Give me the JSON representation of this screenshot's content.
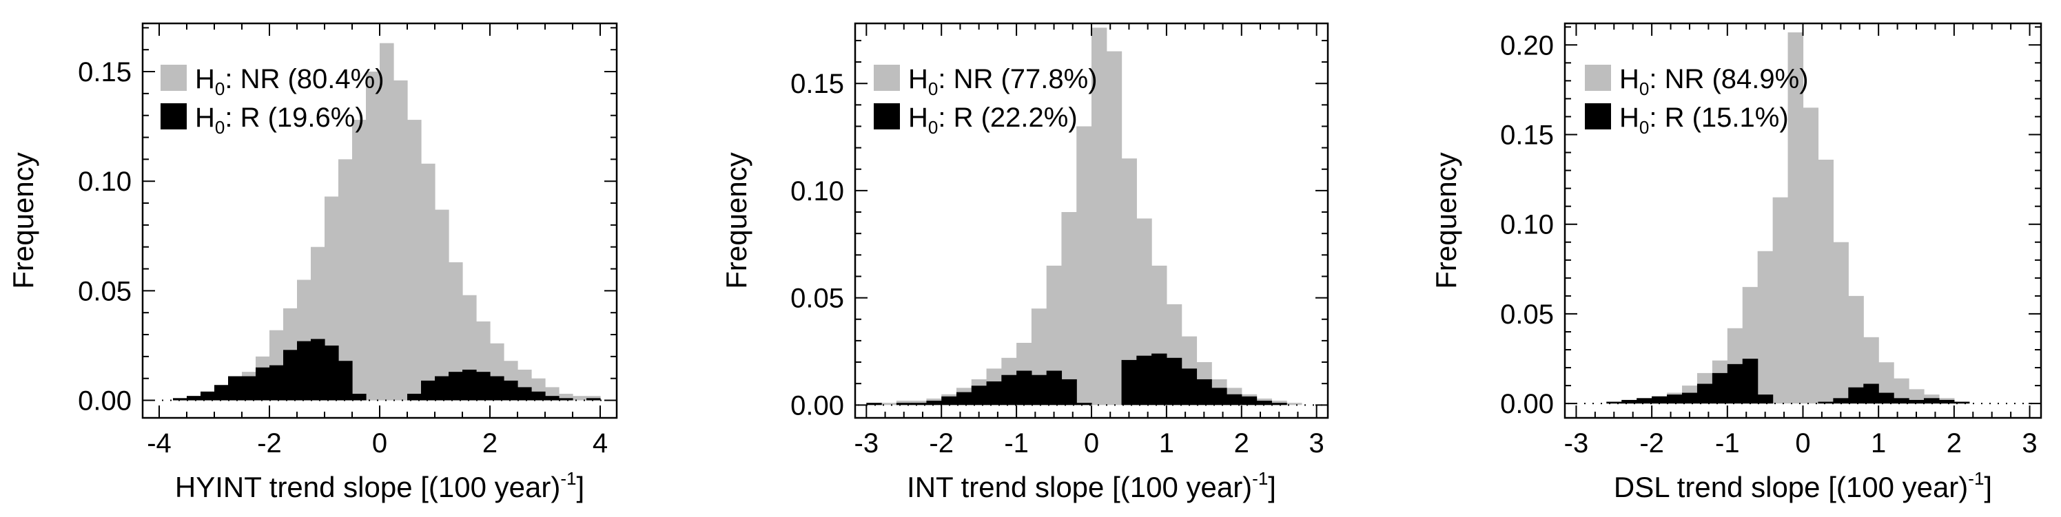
{
  "chart_data": [
    {
      "type": "bar",
      "xlabel": "HYINT trend slope [(100 year)",
      "xlabel_sup": "-1",
      "xlabel_tail": "]",
      "ylabel": "Frequency",
      "xlim": [
        -4.3,
        4.3
      ],
      "ylim": [
        -0.008,
        0.172
      ],
      "xticks": [
        -4,
        -2,
        0,
        2,
        4
      ],
      "xtick_labels": [
        "-4",
        "-2",
        "0",
        "2",
        "4"
      ],
      "yticks": [
        0,
        0.05,
        0.1,
        0.15
      ],
      "ytick_labels": [
        "0.00",
        "0.05",
        "0.10",
        "0.15"
      ],
      "bin_width": 0.25,
      "x": [
        -3.75,
        -3.5,
        -3.25,
        -3.0,
        -2.75,
        -2.5,
        -2.25,
        -2.0,
        -1.75,
        -1.5,
        -1.25,
        -1.0,
        -0.75,
        -0.5,
        -0.25,
        0.0,
        0.25,
        0.5,
        0.75,
        1.0,
        1.25,
        1.5,
        1.75,
        2.0,
        2.25,
        2.5,
        2.75,
        3.0,
        3.25,
        3.5,
        3.75
      ],
      "series": [
        {
          "name": "NR",
          "color": "#bebebe",
          "values": [
            0.001,
            0.002,
            0.003,
            0.005,
            0.008,
            0.013,
            0.02,
            0.032,
            0.042,
            0.055,
            0.07,
            0.093,
            0.11,
            0.128,
            0.15,
            0.163,
            0.146,
            0.128,
            0.108,
            0.087,
            0.063,
            0.048,
            0.036,
            0.026,
            0.018,
            0.014,
            0.01,
            0.006,
            0.003,
            0.002,
            0.002
          ]
        },
        {
          "name": "R",
          "color": "#000000",
          "values": [
            0.001,
            0.002,
            0.004,
            0.007,
            0.011,
            0.011,
            0.015,
            0.016,
            0.023,
            0.027,
            0.028,
            0.025,
            0.018,
            0.003,
            0.0,
            0.0,
            0.0,
            0.003,
            0.009,
            0.011,
            0.013,
            0.014,
            0.013,
            0.011,
            0.009,
            0.006,
            0.004,
            0.002,
            0.001,
            0.0,
            0.001
          ]
        }
      ],
      "legend": [
        {
          "base": "H",
          "sub": "0",
          "text": ": NR (80.4%)",
          "color": "#bebebe"
        },
        {
          "base": "H",
          "sub": "0",
          "text": ": R (19.6%)",
          "color": "#000000"
        }
      ],
      "legend_position": "upper-left"
    },
    {
      "type": "bar",
      "xlabel": "INT trend slope [(100 year)",
      "xlabel_sup": "-1",
      "xlabel_tail": "]",
      "ylabel": "Frequency",
      "xlim": [
        -3.15,
        3.15
      ],
      "ylim": [
        -0.006,
        0.178
      ],
      "xticks": [
        -3,
        -2,
        -1,
        0,
        1,
        2,
        3
      ],
      "xtick_labels": [
        "-3",
        "-2",
        "-1",
        "0",
        "1",
        "2",
        "3"
      ],
      "yticks": [
        0,
        0.05,
        0.1,
        0.15
      ],
      "ytick_labels": [
        "0.00",
        "0.05",
        "0.10",
        "0.15"
      ],
      "bin_width": 0.2,
      "x": [
        -3.0,
        -2.8,
        -2.6,
        -2.4,
        -2.2,
        -2.0,
        -1.8,
        -1.6,
        -1.4,
        -1.2,
        -1.0,
        -0.8,
        -0.6,
        -0.4,
        -0.2,
        0.0,
        0.2,
        0.4,
        0.6,
        0.8,
        1.0,
        1.2,
        1.4,
        1.6,
        1.8,
        2.0,
        2.2,
        2.4,
        2.6
      ],
      "series": [
        {
          "name": "NR",
          "color": "#bebebe",
          "values": [
            0.001,
            0.001,
            0.002,
            0.002,
            0.003,
            0.005,
            0.008,
            0.012,
            0.017,
            0.022,
            0.029,
            0.045,
            0.065,
            0.09,
            0.13,
            0.176,
            0.165,
            0.115,
            0.087,
            0.065,
            0.047,
            0.032,
            0.02,
            0.012,
            0.008,
            0.005,
            0.003,
            0.002,
            0.001
          ]
        },
        {
          "name": "R",
          "color": "#000000",
          "values": [
            0.001,
            0.0,
            0.001,
            0.001,
            0.002,
            0.004,
            0.006,
            0.009,
            0.011,
            0.014,
            0.016,
            0.014,
            0.016,
            0.012,
            0.001,
            0.0,
            0.0,
            0.021,
            0.023,
            0.024,
            0.022,
            0.017,
            0.012,
            0.008,
            0.005,
            0.004,
            0.002,
            0.001,
            0.0
          ]
        }
      ],
      "legend": [
        {
          "base": "H",
          "sub": "0",
          "text": ": NR (77.8%)",
          "color": "#bebebe"
        },
        {
          "base": "H",
          "sub": "0",
          "text": ": R (22.2%)",
          "color": "#000000"
        }
      ],
      "legend_position": "upper-left"
    },
    {
      "type": "bar",
      "xlabel": "DSL trend slope [(100 year)",
      "xlabel_sup": "-1",
      "xlabel_tail": "]",
      "ylabel": "Frequency",
      "xlim": [
        -3.15,
        3.15
      ],
      "ylim": [
        -0.008,
        0.212
      ],
      "xticks": [
        -3,
        -2,
        -1,
        0,
        1,
        2,
        3
      ],
      "xtick_labels": [
        "-3",
        "-2",
        "-1",
        "0",
        "1",
        "2",
        "3"
      ],
      "yticks": [
        0,
        0.05,
        0.1,
        0.15,
        0.2
      ],
      "ytick_labels": [
        "0.00",
        "0.05",
        "0.10",
        "0.15",
        "0.20"
      ],
      "bin_width": 0.2,
      "x": [
        -2.6,
        -2.4,
        -2.2,
        -2.0,
        -1.8,
        -1.6,
        -1.4,
        -1.2,
        -1.0,
        -0.8,
        -0.6,
        -0.4,
        -0.2,
        0.0,
        0.2,
        0.4,
        0.6,
        0.8,
        1.0,
        1.2,
        1.4,
        1.6,
        1.8,
        2.0
      ],
      "series": [
        {
          "name": "NR",
          "color": "#bebebe",
          "values": [
            0.001,
            0.002,
            0.003,
            0.004,
            0.006,
            0.01,
            0.017,
            0.024,
            0.042,
            0.065,
            0.085,
            0.115,
            0.207,
            0.165,
            0.136,
            0.09,
            0.06,
            0.037,
            0.023,
            0.014,
            0.008,
            0.005,
            0.003,
            0.001
          ]
        },
        {
          "name": "R",
          "color": "#000000",
          "values": [
            0.001,
            0.002,
            0.003,
            0.004,
            0.005,
            0.006,
            0.011,
            0.017,
            0.022,
            0.025,
            0.005,
            0.0,
            0.0,
            0.0,
            0.001,
            0.003,
            0.009,
            0.011,
            0.006,
            0.003,
            0.002,
            0.003,
            0.002,
            0.001
          ]
        }
      ],
      "legend": [
        {
          "base": "H",
          "sub": "0",
          "text": ": NR (84.9%)",
          "color": "#bebebe"
        },
        {
          "base": "H",
          "sub": "0",
          "text": ": R (15.1%)",
          "color": "#000000"
        }
      ],
      "legend_position": "upper-left"
    }
  ]
}
